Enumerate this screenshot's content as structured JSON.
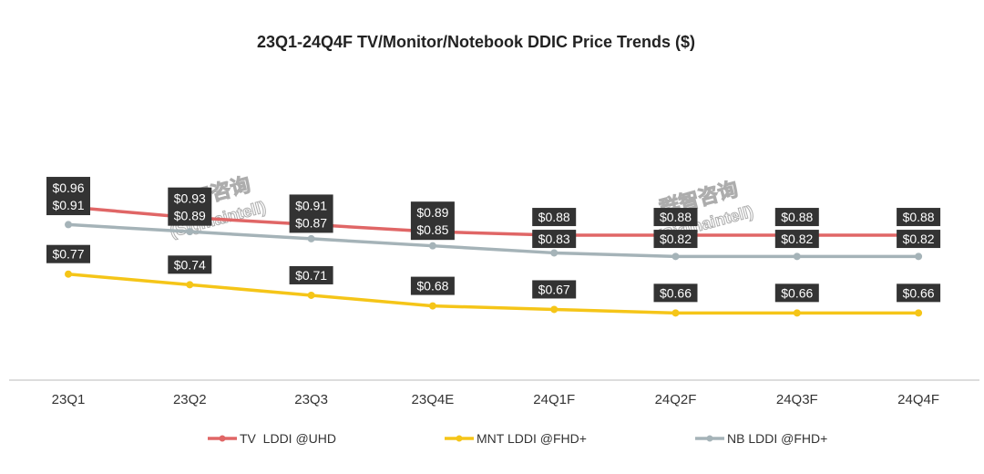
{
  "chart_data": {
    "type": "line",
    "title": "23Q1-24Q4F TV/Monitor/Notebook DDIC Price Trends ($)",
    "xlabel": "",
    "ylabel": "",
    "categories": [
      "23Q1",
      "23Q2",
      "23Q3",
      "23Q4E",
      "24Q1F",
      "24Q2F",
      "24Q3F",
      "24Q4F"
    ],
    "ylim": [
      0.47,
      1.2
    ],
    "grid": false,
    "legend_position": "bottom",
    "series": [
      {
        "name": "TV  LDDI @UHD",
        "color": "#e06666",
        "values": [
          0.96,
          0.93,
          0.91,
          0.89,
          0.88,
          0.88,
          0.88,
          0.88
        ],
        "labels": [
          "$0.96",
          "$0.93",
          "$0.91",
          "$0.89",
          "$0.88",
          "$0.88",
          "$0.88",
          "$0.88"
        ]
      },
      {
        "name": "MNT LDDI @FHD+",
        "color": "#f5c518",
        "values": [
          0.77,
          0.74,
          0.71,
          0.68,
          0.67,
          0.66,
          0.66,
          0.66
        ],
        "labels": [
          "$0.77",
          "$0.74",
          "$0.71",
          "$0.68",
          "$0.67",
          "$0.66",
          "$0.66",
          "$0.66"
        ]
      },
      {
        "name": "NB LDDI @FHD+",
        "color": "#a5b3b8",
        "values": [
          0.91,
          0.89,
          0.87,
          0.85,
          0.83,
          0.82,
          0.82,
          0.82
        ],
        "labels": [
          "$0.91",
          "$0.89",
          "$0.87",
          "$0.85",
          "$0.83",
          "$0.82",
          "$0.82",
          "$0.82"
        ]
      }
    ],
    "watermark": "群智咨询 (Sigmaintell)"
  }
}
